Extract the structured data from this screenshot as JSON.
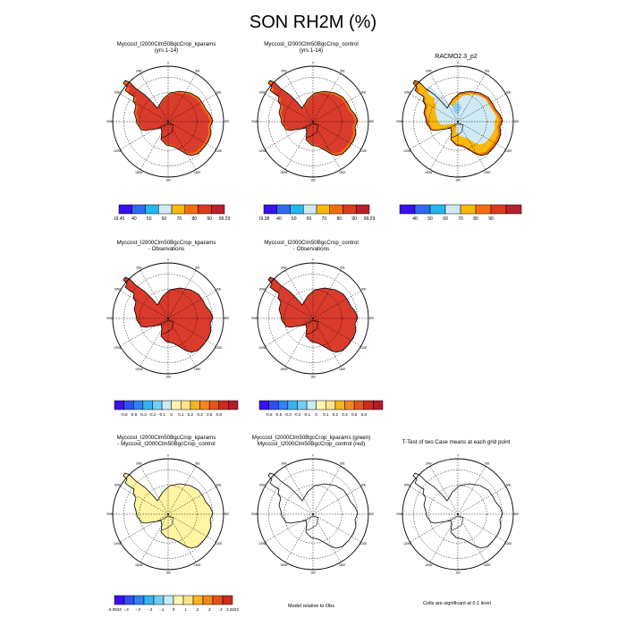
{
  "figure": {
    "title": "SON RH2M (%)"
  },
  "colors": {
    "rh_scale": [
      "#3a10f0",
      "#2f6bec",
      "#23b6f0",
      "#cfeaf4",
      "#f9b80c",
      "#f46d11",
      "#d93b1c",
      "#b7212c"
    ],
    "diff_scale": [
      "#3a10f0",
      "#2e4ff0",
      "#2f83ef",
      "#3ab2f0",
      "#72cdf2",
      "#c9e9f3",
      "#fff5b0",
      "#fde58c",
      "#f8b520",
      "#f4861a",
      "#e0551d",
      "#cc2a1f",
      "#b21c2a"
    ],
    "land_red": "#d93b2c",
    "edge_orange": "#f46d11",
    "yellow": "#fff5a3",
    "light_blue": "#cfeaf4",
    "amber": "#f9b80c"
  },
  "panels": [
    {
      "title1": "Myccost_I2000Clm50BgcCrop_kparams",
      "title2": "(yrs 1-14)"
    },
    {
      "title1": "Myccost_I2000Clm50BgcCrop_control",
      "title2": "(yrs 1-14)"
    },
    {
      "title1": "RACMO2.3_p2",
      "title2": ""
    },
    {
      "title1": "Myccost_I2000Clm50BgcCrop_kparams",
      "title2": "- Observations"
    },
    {
      "title1": "Myccost_I2000Clm50BgcCrop_control",
      "title2": "- Observations"
    },
    {
      "title1": "Myccost_I2000Clm50BgcCrop_kparams",
      "title2": "- Myccost_I2000Clm50BgcCrop_control"
    },
    {
      "title1": "Myccost_I2000Clm50BgcCrop_kparams (green)",
      "title2": "Myccost_I2000Clm50BgcCrop_control (red)"
    },
    {
      "title1": "T-Test of two Case means at each grid point",
      "title2": ""
    }
  ],
  "map_labels": {
    "lon": [
      "0",
      "30E",
      "60E",
      "90E",
      "120E",
      "150E",
      "180",
      "150W",
      "120W",
      "90W",
      "60W",
      "30W"
    ]
  },
  "colorbars": {
    "cb1": [
      "19.45",
      "40",
      "50",
      "60",
      "70",
      "80",
      "90",
      "99.29"
    ],
    "cb2": [
      "19.38",
      "40",
      "50",
      "60",
      "70",
      "80",
      "90",
      "99.29"
    ],
    "cb3": [
      "40",
      "50",
      "60",
      "70",
      "80",
      "90"
    ],
    "cb_diff": [
      "-0.8",
      "-0.5",
      "-0.3",
      "-0.2",
      "-0.1",
      "0",
      "0.1",
      "0.2",
      "0.3",
      "0.5",
      "0.8"
    ],
    "cb_tt": [
      "-2.0633",
      "-.4",
      "-.3",
      "-.2",
      "-.1",
      "0",
      ".1",
      ".2",
      ".3",
      ".4",
      "3.2622"
    ]
  },
  "notes": {
    "model_relative": "Model relative to Obs",
    "cells_significant": "Cells are significant at 0.1 level"
  },
  "chart_data": [
    {
      "type": "heatmap",
      "title": "Myccost_I2000Clm50BgcCrop_kparams (yrs 1-14)",
      "field": "RH2M",
      "unit": "%",
      "range": [
        19.45,
        99.29
      ],
      "levels": [
        40,
        50,
        60,
        70,
        80,
        90
      ]
    },
    {
      "type": "heatmap",
      "title": "Myccost_I2000Clm50BgcCrop_control (yrs 1-14)",
      "field": "RH2M",
      "unit": "%",
      "range": [
        19.38,
        99.29
      ],
      "levels": [
        40,
        50,
        60,
        70,
        80,
        90
      ]
    },
    {
      "type": "heatmap",
      "title": "RACMO2.3_p2",
      "field": "RH2M",
      "unit": "%",
      "levels": [
        40,
        50,
        60,
        70,
        80,
        90
      ]
    },
    {
      "type": "heatmap",
      "title": "Myccost_I2000Clm50BgcCrop_kparams - Observations",
      "levels": [
        -0.8,
        -0.5,
        -0.3,
        -0.2,
        -0.1,
        0,
        0.1,
        0.2,
        0.3,
        0.5,
        0.8
      ]
    },
    {
      "type": "heatmap",
      "title": "Myccost_I2000Clm50BgcCrop_control - Observations",
      "levels": [
        -0.8,
        -0.5,
        -0.3,
        -0.2,
        -0.1,
        0,
        0.1,
        0.2,
        0.3,
        0.5,
        0.8
      ]
    },
    {
      "type": "heatmap",
      "title": "Myccost_I2000Clm50BgcCrop_kparams - Myccost_I2000Clm50BgcCrop_control",
      "range": [
        -2.0633,
        3.2622
      ],
      "levels": [
        -0.4,
        -0.3,
        -0.2,
        -0.1,
        0,
        0.1,
        0.2,
        0.3,
        0.4
      ]
    }
  ]
}
